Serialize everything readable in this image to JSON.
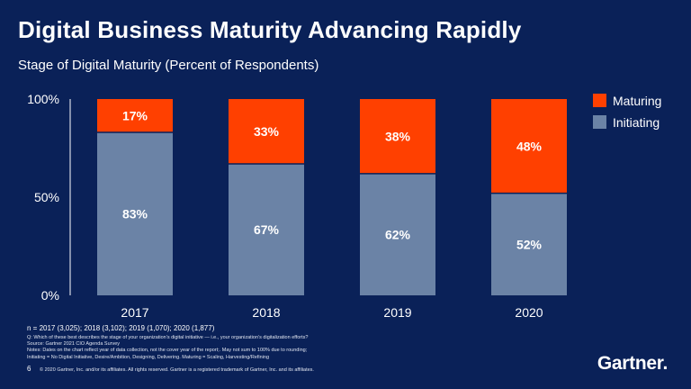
{
  "header": {
    "title": "Digital Business Maturity Advancing Rapidly",
    "subtitle": "Stage of Digital Maturity (Percent of Respondents)"
  },
  "chart_data": {
    "type": "bar",
    "stacked": true,
    "categories": [
      "2017",
      "2018",
      "2019",
      "2020"
    ],
    "series": [
      {
        "name": "Initiating",
        "values": [
          83,
          67,
          62,
          52
        ],
        "labels": [
          "83%",
          "67%",
          "62%",
          "52%"
        ],
        "color": "#6b83a6"
      },
      {
        "name": "Maturing",
        "values": [
          17,
          33,
          38,
          48
        ],
        "labels": [
          "17%",
          "33%",
          "38%",
          "48%"
        ],
        "color": "#ff4000"
      }
    ],
    "ylim": [
      0,
      100
    ],
    "yticks": [
      0,
      50,
      100
    ],
    "ytick_labels": [
      "0%",
      "50%",
      "100%"
    ],
    "legend": [
      "Maturing",
      "Initiating"
    ],
    "legend_position": "top-right",
    "grid": false
  },
  "notes": {
    "n": "n = 2017 (3,025); 2018 (3,102); 2019 (1,070); 2020 (1,877)",
    "question": "Q: Which of these best describes the stage of your organization’s digital initiative — i.e., your organization’s digitalization efforts?",
    "source": "Source: Gartner 2021 CIO Agenda Survey",
    "note1": "Notes: Dates on the chart reflect year of data collection, not the cover year of the report;. May not sum to 100% due to rounding;",
    "note2": "Initiating = No Digital Initiative, Desire/Ambition, Designing, Delivering. Maturing = Scaling, Harvesting/Refining"
  },
  "footer": {
    "page_number": "6",
    "copyright": "© 2020 Gartner, Inc. and/or its affiliates. All rights reserved. Gartner is a registered trademark of Gartner, Inc. and its affiliates.",
    "logo": "Gartner",
    "logo_dot": "."
  },
  "colors": {
    "background": "#0a2158",
    "initiating": "#6b83a6",
    "maturing": "#ff4000",
    "text": "#ffffff"
  }
}
